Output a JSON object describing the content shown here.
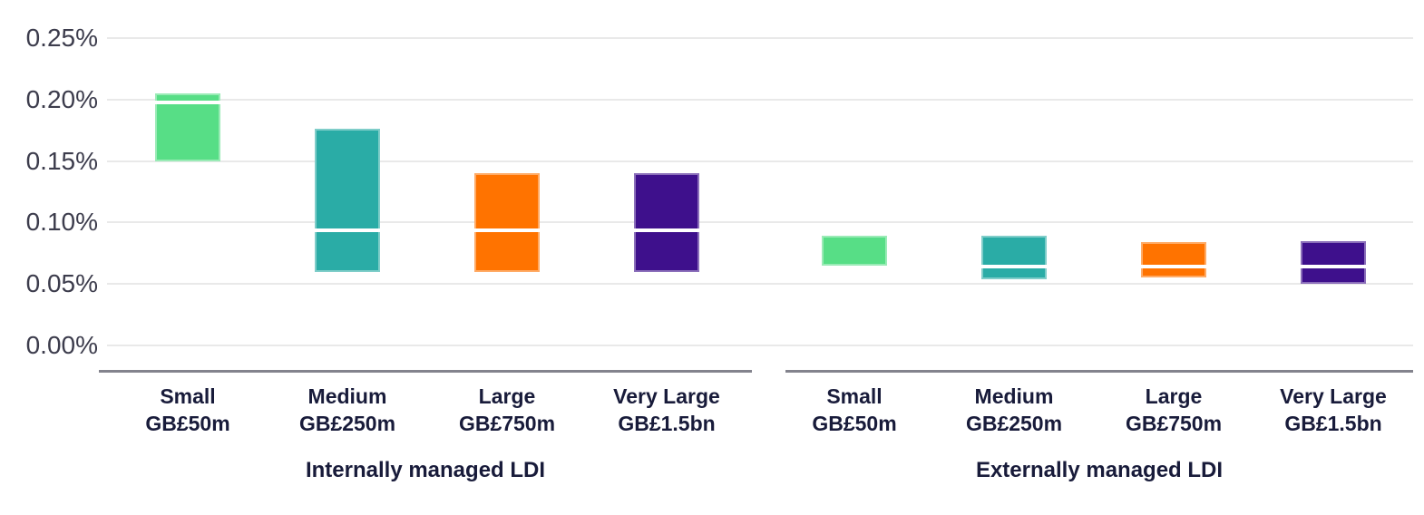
{
  "chart_data": {
    "type": "bar",
    "subtype": "floating-range-bars-with-median-line",
    "title": "",
    "unit": "percent",
    "legend_position": "none",
    "grid": true,
    "y_axis": {
      "min": 0.0,
      "max": 0.25,
      "ticks": [
        {
          "value": 0.0,
          "label": "0.00%"
        },
        {
          "value": 0.05,
          "label": "0.05%"
        },
        {
          "value": 0.1,
          "label": "0.10%"
        },
        {
          "value": 0.15,
          "label": "0.15%"
        },
        {
          "value": 0.2,
          "label": "0.20%"
        },
        {
          "value": 0.25,
          "label": "0.25%"
        }
      ]
    },
    "sizes": [
      {
        "id": "small",
        "label": "Small",
        "sublabel": "GB£50m",
        "color": "#57de86"
      },
      {
        "id": "medium",
        "label": "Medium",
        "sublabel": "GB£250m",
        "color": "#2aaca6"
      },
      {
        "id": "large",
        "label": "Large",
        "sublabel": "GB£750m",
        "color": "#ff7300"
      },
      {
        "id": "very-large",
        "label": "Very Large",
        "sublabel": "GB£1.5bn",
        "color": "#3e108c"
      }
    ],
    "median_line_color": "#ffffff",
    "groups": [
      {
        "label": "Internally managed LDI",
        "bars": [
          {
            "size": "Small",
            "min": 0.15,
            "median": 0.198,
            "max": 0.205
          },
          {
            "size": "Medium",
            "min": 0.06,
            "median": 0.094,
            "max": 0.176
          },
          {
            "size": "Large",
            "min": 0.06,
            "median": 0.094,
            "max": 0.14
          },
          {
            "size": "Very Large",
            "min": 0.06,
            "median": 0.094,
            "max": 0.14
          }
        ]
      },
      {
        "label": "Externally managed LDI",
        "bars": [
          {
            "size": "Small",
            "min": 0.065,
            "median": 0.065,
            "max": 0.089
          },
          {
            "size": "Medium",
            "min": 0.054,
            "median": 0.064,
            "max": 0.089
          },
          {
            "size": "Large",
            "min": 0.055,
            "median": 0.064,
            "max": 0.084
          },
          {
            "size": "Very Large",
            "min": 0.05,
            "median": 0.064,
            "max": 0.085
          }
        ]
      }
    ]
  }
}
